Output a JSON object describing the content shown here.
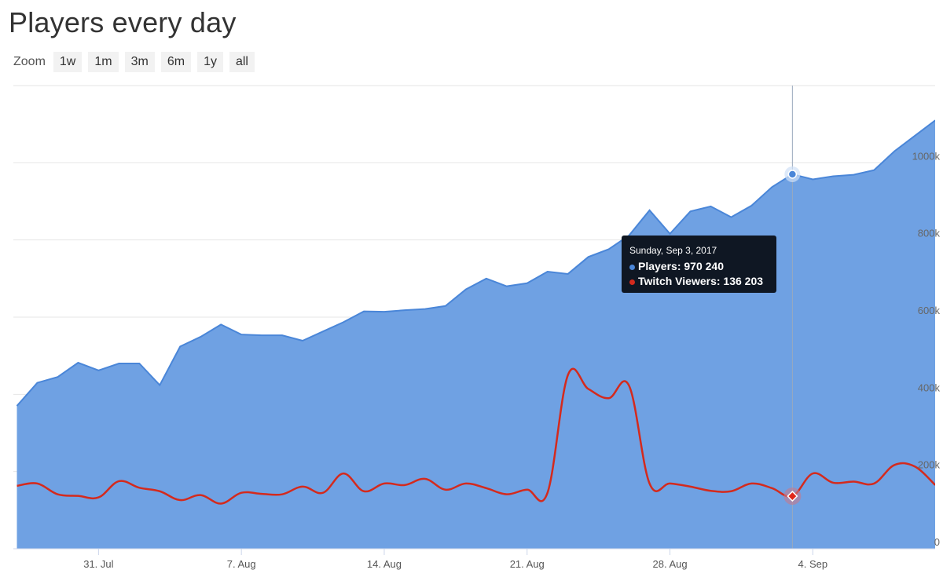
{
  "title": "Players every day",
  "zoom": {
    "label": "Zoom",
    "buttons": [
      "1w",
      "1m",
      "3m",
      "6m",
      "1y",
      "all"
    ]
  },
  "tooltip": {
    "date": "Sunday, Sep 3, 2017",
    "players_label": "Players:",
    "players_value": "970 240",
    "twitch_label": "Twitch Viewers:",
    "twitch_value": "136 203"
  },
  "colors": {
    "players_fill": "#6fa1e3",
    "players_line": "#4a86d8",
    "twitch_line": "#d42a1d",
    "tooltip_bg": "#0f1723"
  },
  "chart_data": {
    "type": "area",
    "title": "Players every day",
    "x_start": "2017-07-27",
    "x": [
      "27 Jul",
      "28 Jul",
      "29 Jul",
      "30 Jul",
      "31 Jul",
      "1 Aug",
      "2 Aug",
      "3 Aug",
      "4 Aug",
      "5 Aug",
      "6 Aug",
      "7 Aug",
      "8 Aug",
      "9 Aug",
      "10 Aug",
      "11 Aug",
      "12 Aug",
      "13 Aug",
      "14 Aug",
      "15 Aug",
      "16 Aug",
      "17 Aug",
      "18 Aug",
      "19 Aug",
      "20 Aug",
      "21 Aug",
      "22 Aug",
      "23 Aug",
      "24 Aug",
      "25 Aug",
      "26 Aug",
      "27 Aug",
      "28 Aug",
      "29 Aug",
      "30 Aug",
      "31 Aug",
      "1 Sep",
      "2 Sep",
      "3 Sep",
      "4 Sep",
      "5 Sep",
      "6 Sep",
      "7 Sep",
      "8 Sep",
      "9 Sep",
      "10 Sep"
    ],
    "series": [
      {
        "name": "Players",
        "type": "area",
        "values": [
          370000,
          430000,
          445000,
          482000,
          462000,
          480000,
          480000,
          424000,
          524000,
          549000,
          581000,
          555000,
          553000,
          553000,
          539000,
          563000,
          587000,
          615000,
          614000,
          618000,
          621000,
          629000,
          672000,
          700000,
          680000,
          688000,
          718000,
          712000,
          756000,
          776000,
          812000,
          877000,
          816000,
          874000,
          887000,
          859000,
          889000,
          937000,
          970240,
          957000,
          965000,
          969000,
          981000,
          1030000,
          1070000,
          1110000
        ]
      },
      {
        "name": "Twitch Viewers",
        "type": "spline",
        "values": [
          163000,
          169000,
          141000,
          137000,
          133000,
          175000,
          158000,
          149000,
          126000,
          139000,
          117000,
          145000,
          142000,
          141000,
          161000,
          145000,
          195000,
          149000,
          169000,
          165000,
          181000,
          153000,
          169000,
          157000,
          141000,
          153000,
          145000,
          450000,
          414000,
          390000,
          422000,
          169000,
          169000,
          161000,
          150000,
          149000,
          169000,
          157000,
          136203,
          195000,
          171000,
          174000,
          169000,
          217000,
          213000,
          165000
        ]
      }
    ],
    "x_ticks": [
      {
        "label": "31. Jul",
        "index": 4
      },
      {
        "label": "7. Aug",
        "index": 11
      },
      {
        "label": "14. Aug",
        "index": 18
      },
      {
        "label": "21. Aug",
        "index": 25
      },
      {
        "label": "28. Aug",
        "index": 32
      },
      {
        "label": "4. Sep",
        "index": 39
      }
    ],
    "y_ticks": [
      {
        "label": "0",
        "value": 0
      },
      {
        "label": "200k",
        "value": 200000
      },
      {
        "label": "400k",
        "value": 400000
      },
      {
        "label": "600k",
        "value": 600000
      },
      {
        "label": "800k",
        "value": 800000
      },
      {
        "label": "1000k",
        "value": 1000000
      }
    ],
    "ylim": [
      0,
      1200000
    ],
    "highlight_index": 38,
    "grid": true,
    "legend": "none"
  }
}
